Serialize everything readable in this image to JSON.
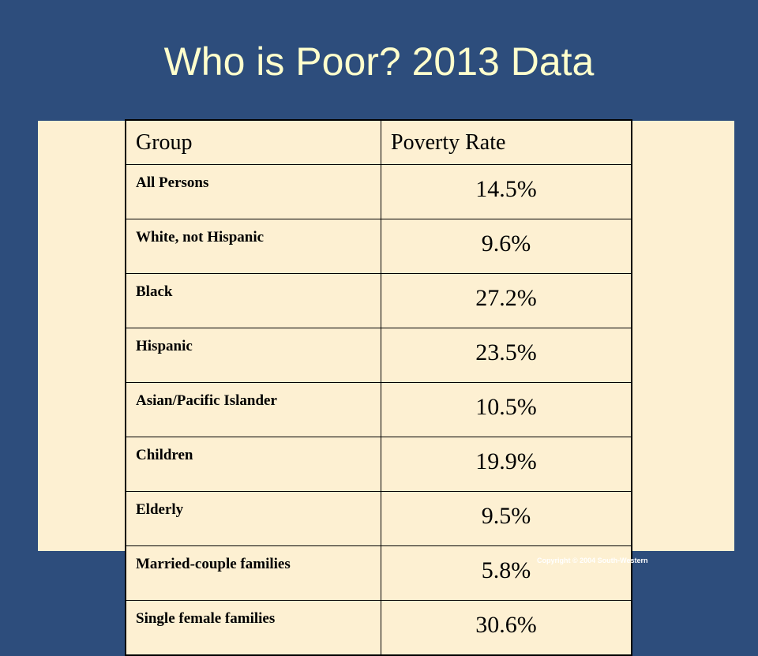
{
  "title": "Who is Poor?  2013 Data",
  "table": {
    "headers": [
      "Group",
      "Poverty Rate"
    ],
    "rows": [
      {
        "group": "All Persons",
        "rate": "14.5%"
      },
      {
        "group": "White, not Hispanic",
        "rate": "9.6%"
      },
      {
        "group": "Black",
        "rate": "27.2%"
      },
      {
        "group": "Hispanic",
        "rate": "23.5%"
      },
      {
        "group": "Asian/Pacific Islander",
        "rate": "10.5%"
      },
      {
        "group": "Children",
        "rate": "19.9%"
      },
      {
        "group": "Elderly",
        "rate": "9.5%"
      },
      {
        "group": "Married-couple families",
        "rate": "5.8%"
      },
      {
        "group": "Single female families",
        "rate": "30.6%"
      }
    ]
  },
  "copyright": "Copyright © 2004  South-Western",
  "colors": {
    "background": "#2d4d7c",
    "title": "#ffffcc",
    "panel": "#fdf0d2"
  }
}
